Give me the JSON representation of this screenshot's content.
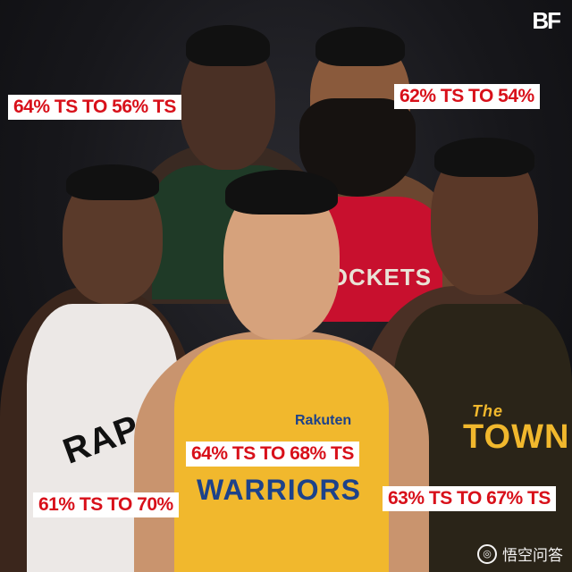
{
  "brand": {
    "logo_text": "BF"
  },
  "watermark": {
    "text": "悟空问答",
    "icon": "wukong-logo-icon"
  },
  "jersey_texts": {
    "rockets": "ROCKETS",
    "rakuten": "Rakuten",
    "warriors": "WARRIORS",
    "town": "TOWN",
    "the": "The",
    "raptors": "RAP"
  },
  "labels": {
    "giannis": "64% TS TO 56% TS",
    "harden": "62% TS TO 54%",
    "curry": "64% TS TO 68% TS",
    "kawhi": "61% TS TO 70%",
    "durant": "63% TS TO 67% TS"
  },
  "colors": {
    "label_bg": "#ffffff",
    "label_text": "#d8101a",
    "rockets_red": "#c8102e",
    "bucks_green": "#1f3a27",
    "warriors_gold": "#f1b82d",
    "raptors_white": "#ece8e6"
  }
}
